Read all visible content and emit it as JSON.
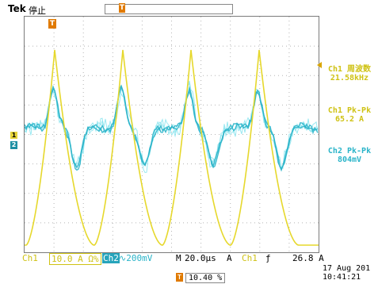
{
  "header": {
    "brand": "Tek",
    "run_status": "停止",
    "trigger_position_marker": "T"
  },
  "side_readouts": {
    "ch1_freq_label": "Ch1 周波数",
    "ch1_freq_value": "21.58kHz",
    "ch1_pkpk_label": "Ch1 Pk-Pk",
    "ch1_pkpk_value": "65.2 A",
    "ch2_pkpk_label": "Ch2 Pk-Pk",
    "ch2_pkpk_value": "804mV"
  },
  "markers": {
    "ch1": "1",
    "ch2": "2",
    "trigger": "T"
  },
  "statusbar": {
    "ch1_label": "Ch1",
    "ch1_scale": "10.0 A Ω%",
    "ch2_label": "Ch2",
    "ch2_scale": "200mV",
    "bw_icon": "∿",
    "m_label": "M",
    "timebase": "20.0μs",
    "acq_mode": "A",
    "trig_source": "Ch1",
    "trig_slope": "ƒ",
    "trig_level": "26.8 A"
  },
  "position": {
    "icon": "T",
    "value": "10.40 %"
  },
  "datetime": {
    "date": "17 Aug 201",
    "time": "10:41:21"
  },
  "colors": {
    "ch1": "#e6d82c",
    "ch2": "#2ab4c9",
    "ch2_light": "#8ee6ef",
    "grid": "#b5b5b5",
    "trigger": "#e07a00"
  }
}
